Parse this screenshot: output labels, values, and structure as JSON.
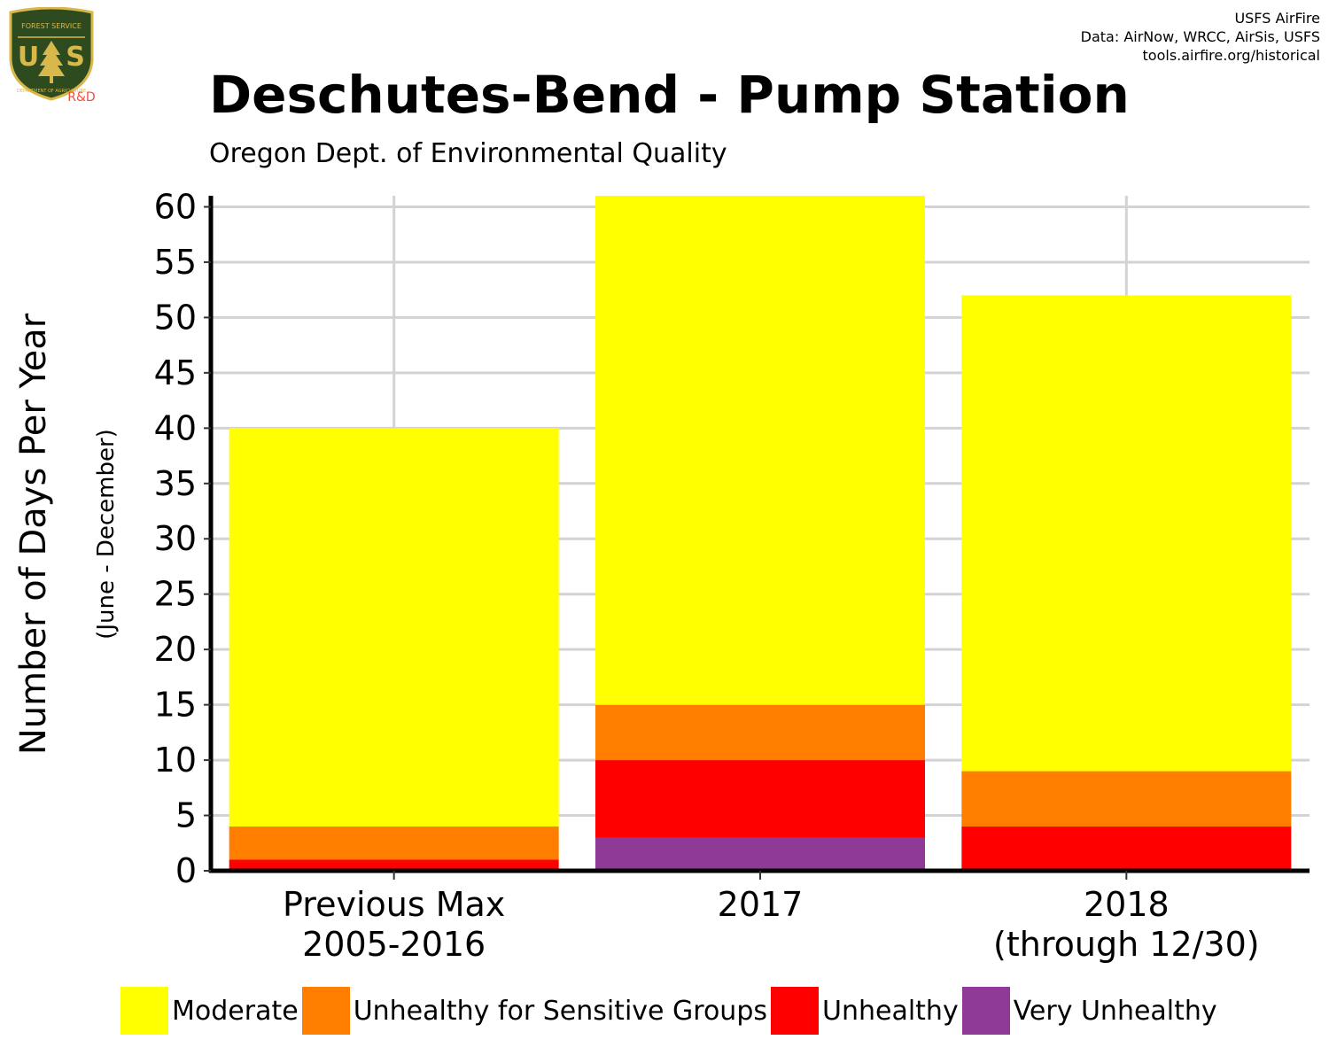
{
  "logo": {
    "agency_text": "FOREST SERVICE",
    "letters": "USS",
    "dept_text": "DEPARTMENT OF AGRICULTURE",
    "tag": "R&D",
    "colors": {
      "shield": "#2e4a1f",
      "gold": "#d8b84a",
      "tag": "#e8533c"
    }
  },
  "credits": {
    "line1": "USFS AirFire",
    "line2": "Data: AirNow, WRCC, AirSis, USFS",
    "line3": "tools.airfire.org/historical"
  },
  "chart_data": {
    "type": "bar",
    "stacked": true,
    "title": "Deschutes-Bend - Pump Station",
    "subtitle": "Oregon Dept. of Environmental Quality",
    "ylabel": "Number of Days Per Year",
    "ylabel_sub": "(June - December)",
    "xlabel": "",
    "categories": [
      [
        "Previous Max",
        "2005-2016"
      ],
      [
        "2017"
      ],
      [
        "2018",
        "(through 12/30)"
      ]
    ],
    "ylim": [
      0,
      61
    ],
    "yticks": [
      0,
      5,
      10,
      15,
      20,
      25,
      30,
      35,
      40,
      45,
      50,
      55,
      60
    ],
    "grid": true,
    "legend_position": "bottom",
    "series": [
      {
        "name": "Very Unhealthy",
        "color": "#8e3a96",
        "values": [
          0,
          3,
          0
        ]
      },
      {
        "name": "Unhealthy",
        "color": "#ff0000",
        "values": [
          1,
          7,
          4
        ]
      },
      {
        "name": "Unhealthy for Sensitive Groups",
        "color": "#ff7e00",
        "values": [
          3,
          5,
          5
        ]
      },
      {
        "name": "Moderate",
        "color": "#ffff00",
        "values": [
          36,
          46,
          43
        ]
      }
    ],
    "legend": [
      {
        "label": "Moderate",
        "color": "#ffff00"
      },
      {
        "label": "Unhealthy for Sensitive Groups",
        "color": "#ff7e00"
      },
      {
        "label": "Unhealthy",
        "color": "#ff0000"
      },
      {
        "label": "Very Unhealthy",
        "color": "#8e3a96"
      }
    ],
    "colors": {
      "grid": "#d3d3d3",
      "axis": "#000000"
    }
  }
}
